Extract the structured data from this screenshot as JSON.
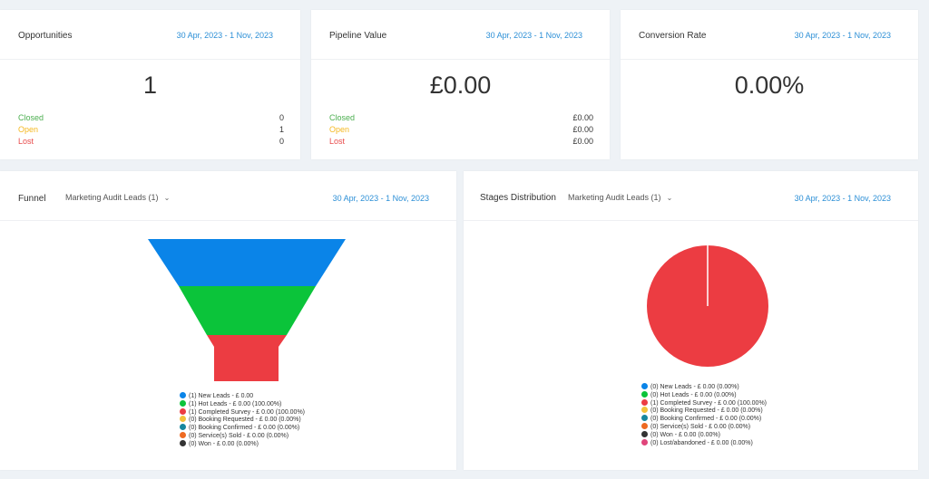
{
  "colors": {
    "blue": "#0a84e8",
    "green": "#0bc43a",
    "red": "#ec3c42",
    "yellow": "#f3c13a",
    "teal": "#17879e",
    "orange": "#ee6a22",
    "dark": "#333333",
    "pink": "#e0457b",
    "date": "#2c8fd6"
  },
  "opportunities": {
    "title": "Opportunities",
    "date_range": "30 Apr, 2023 - 1 Nov, 2023",
    "value": "1",
    "rows": [
      {
        "label": "Closed",
        "value": "0"
      },
      {
        "label": "Open",
        "value": "1"
      },
      {
        "label": "Lost",
        "value": "0"
      }
    ]
  },
  "pipeline": {
    "title": "Pipeline Value",
    "date_range": "30 Apr, 2023 - 1 Nov, 2023",
    "value": "£0.00",
    "rows": [
      {
        "label": "Closed",
        "value": "£0.00"
      },
      {
        "label": "Open",
        "value": "£0.00"
      },
      {
        "label": "Lost",
        "value": "£0.00"
      }
    ]
  },
  "conversion": {
    "title": "Conversion Rate",
    "date_range": "30 Apr, 2023 - 1 Nov, 2023",
    "value": "0.00%"
  },
  "funnel": {
    "title": "Funnel",
    "pipeline_select": "Marketing Audit Leads (1)",
    "date_range": "30 Apr, 2023 - 1 Nov, 2023",
    "legend": [
      "(1) New Leads - £ 0.00",
      "(1) Hot Leads - £ 0.00 (100.00%)",
      "(1) Completed Survey - £ 0.00 (100.00%)",
      "(0) Booking Requested - £ 0.00 (0.00%)",
      "(0) Booking Confirmed - £ 0.00 (0.00%)",
      "(0) Service(s) Sold - £ 0.00 (0.00%)",
      "(0) Won - £ 0.00 (0.00%)"
    ]
  },
  "stages": {
    "title": "Stages Distribution",
    "pipeline_select": "Marketing Audit Leads (1)",
    "date_range": "30 Apr, 2023 - 1 Nov, 2023",
    "legend": [
      "(0) New Leads - £ 0.00 (0.00%)",
      "(0) Hot Leads - £ 0.00 (0.00%)",
      "(1) Completed Survey - £ 0.00 (100.00%)",
      "(0) Booking Requested - £ 0.00 (0.00%)",
      "(0) Booking Confirmed - £ 0.00 (0.00%)",
      "(0) Service(s) Sold - £ 0.00 (0.00%)",
      "(0) Won - £ 0.00 (0.00%)",
      "(0) Lost/abandoned - £ 0.00 (0.00%)"
    ]
  }
}
